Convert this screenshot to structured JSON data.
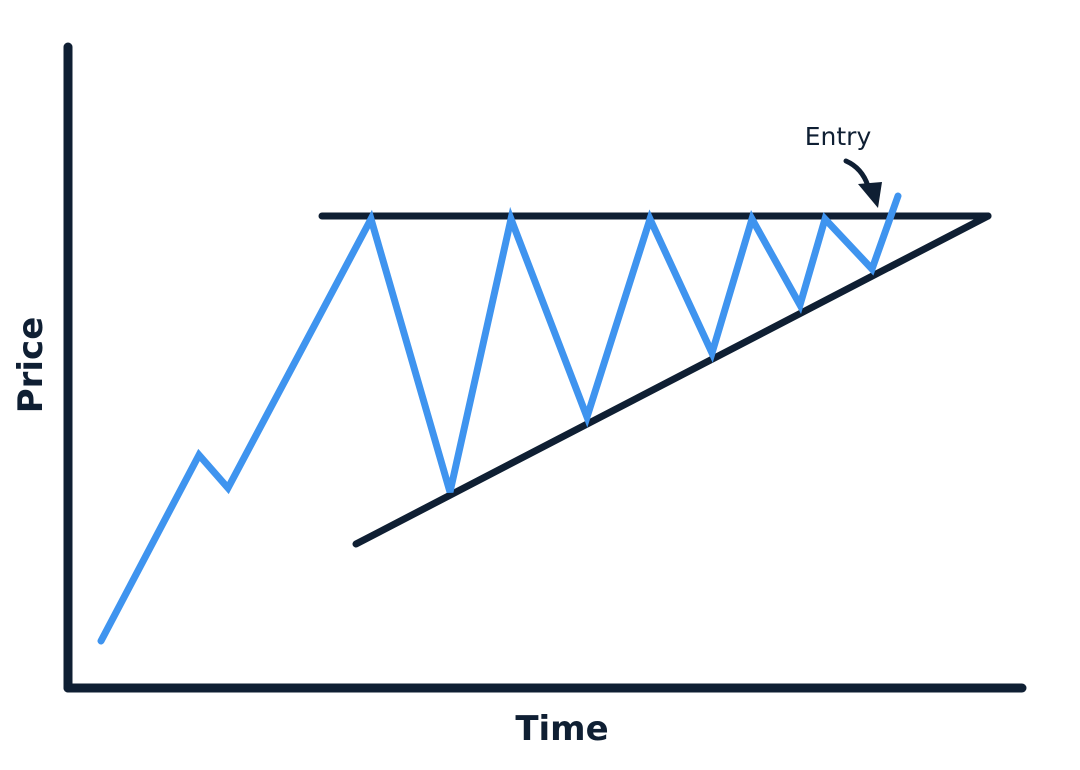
{
  "labels": {
    "x_axis": "Time",
    "y_axis": "Price",
    "annotation": "Entry"
  },
  "colors": {
    "price_line": "#3f94ef",
    "axes_and_trendlines": "#0f1f33",
    "background": "#ffffff"
  },
  "pattern": {
    "elements": [
      "rising price line",
      "flat resistance line",
      "rising support line",
      "breakout arrow"
    ]
  }
}
